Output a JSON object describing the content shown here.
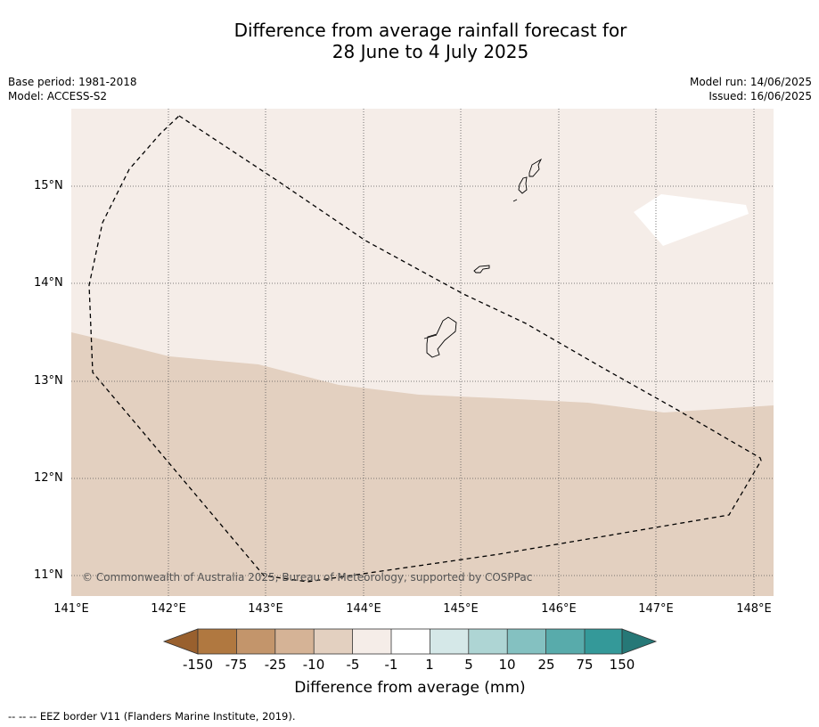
{
  "title_line1": "Difference from average rainfall forecast for",
  "title_line2": "28 June to 4 July 2025",
  "meta": {
    "base_period": "Base period: 1981-2018",
    "model": "Model: ACCESS-S2",
    "model_run": "Model run: 14/06/2025",
    "issued": "Issued: 16/06/2025"
  },
  "copyright": "© Commonwealth of Australia 2025, Bureau of Meteorology, supported by COSPPac",
  "axes": {
    "lat_labels": [
      "15°N",
      "14°N",
      "13°N",
      "12°N",
      "11°N"
    ],
    "lon_labels": [
      "141°E",
      "142°E",
      "143°E",
      "144°E",
      "145°E",
      "146°E",
      "147°E",
      "148°E"
    ]
  },
  "map_region": {
    "lon_range": [
      141.0,
      148.2
    ],
    "lat_range": [
      10.8,
      15.8
    ],
    "fill_categories": {
      "-5 to -1": "#f5ede8",
      "-10 to -5": "#e3d0c0",
      "-1 to 1": "#ffffff"
    }
  },
  "colorbar": {
    "title": "Difference from average (mm)",
    "tick_labels": [
      "-150",
      "-75",
      "-25",
      "-10",
      "-5",
      "-1",
      "1",
      "5",
      "10",
      "25",
      "75",
      "150"
    ],
    "colors": [
      "#99602e",
      "#b07840",
      "#c3956b",
      "#d5b396",
      "#e3d0c0",
      "#f5ede8",
      "#ffffff",
      "#d5e8e8",
      "#aed5d4",
      "#84c1c1",
      "#58abab",
      "#349999",
      "#267877"
    ]
  },
  "footer_note": "--  --  -- EEZ border V11 (Flanders Marine Institute, 2019)."
}
